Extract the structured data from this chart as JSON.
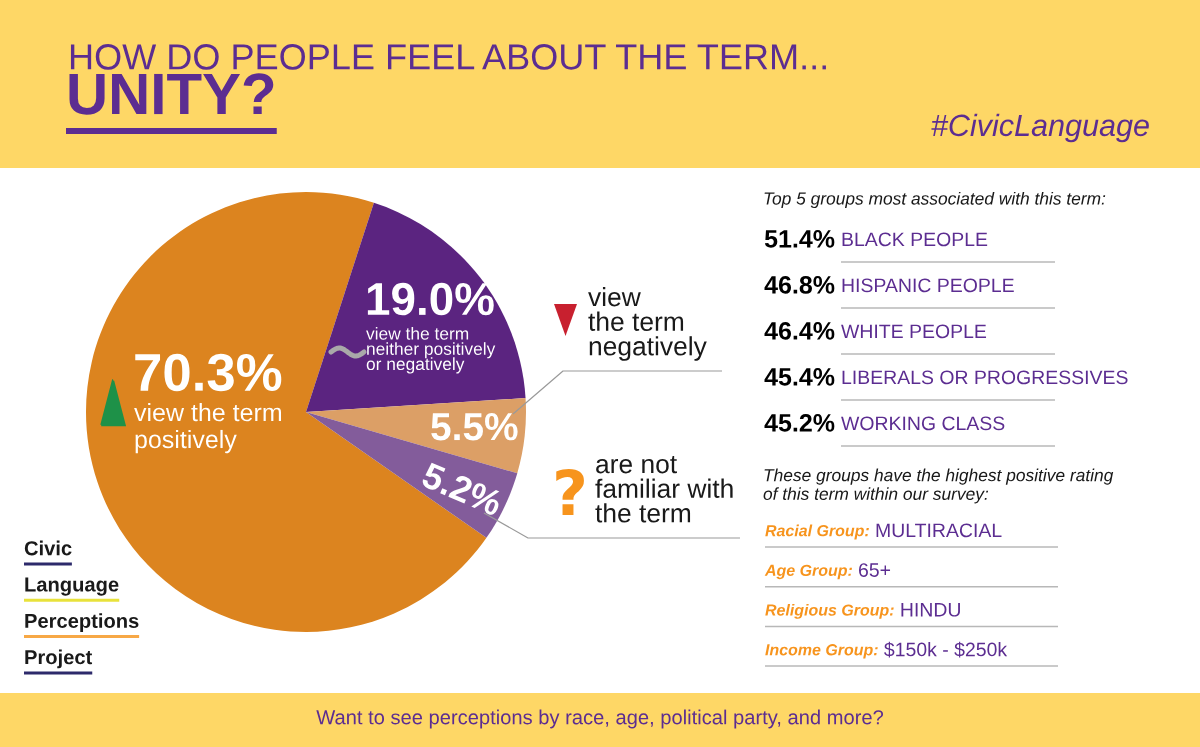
{
  "chart_data": [
    {
      "type": "pie",
      "title": "HOW DO PEOPLE FEEL ABOUT THE TERM...",
      "subtitle": "UNITY?",
      "categories": [
        "view the term\npositively",
        "view the term\nneither positively\nor negatively",
        "view\nthe term\nnegatively",
        "are not\nfamiliar with\nthe term"
      ],
      "values": [
        70.3,
        19.0,
        5.5,
        5.2
      ],
      "colors": [
        "#dc841f",
        "#5b2480",
        "#dc9f66",
        "#835c9b"
      ],
      "value_labels": [
        "70.3%",
        "19.0%",
        "5.5%",
        "5.2%"
      ],
      "annotations": [
        "#CivicLanguage",
        "Civic Language Perceptions Project",
        "Want to see perceptions by race, age, political party, and more?"
      ]
    },
    {
      "type": "other",
      "title": "Top 5 groups most associated with this term:",
      "categories": [
        "BLACK PEOPLE",
        "HISPANIC PEOPLE",
        "WHITE PEOPLE",
        "LIBERALS OR PROGRESSIVES",
        "WORKING CLASS"
      ],
      "value_labels": [
        "51.4%",
        "46.8%",
        "46.4%",
        "45.4%",
        "45.2%"
      ]
    },
    {
      "type": "other",
      "title": "These groups have the highest positive rating\nof this term within our survey:",
      "annotations": [
        "Racial Group: MULTIRACIAL",
        "Age Group: 65+",
        "Religious Group: HINDU",
        "Income Group: $150k - $250k"
      ]
    }
  ]
}
